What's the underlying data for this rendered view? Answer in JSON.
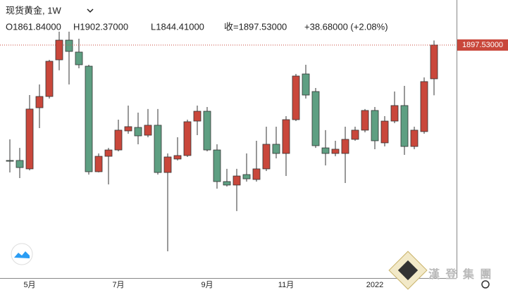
{
  "chart_data": {
    "type": "candlestick",
    "title": "现货黄金, 1W",
    "legend_labels": [
      "O1861.84000",
      "H1902.37000",
      "L1844.41000",
      "收=1897.53000",
      "+38.68000 (+2.08%)"
    ],
    "last_price_label": "1897.53000",
    "watermark": "漢 登 集 團",
    "up_color": "#c9473b",
    "down_color": "#5e9f82",
    "price_line_color": "#c9473b",
    "ylim": [
      1651.4,
      1945.1
    ],
    "categories": [
      null,
      null,
      "5月",
      null,
      null,
      null,
      null,
      null,
      null,
      null,
      null,
      "7月",
      null,
      null,
      null,
      null,
      null,
      null,
      null,
      null,
      "9月",
      null,
      null,
      null,
      null,
      null,
      null,
      null,
      "11月",
      null,
      null,
      null,
      null,
      null,
      null,
      null,
      null,
      "2022",
      null,
      null,
      null,
      null,
      null,
      null
    ],
    "open": [
      1775.6,
      1775.6,
      1766.7,
      1831.3,
      1843.2,
      1881.9,
      1902.7,
      1890.1,
      1875.2,
      1763.7,
      1780.0,
      1786.7,
      1806.8,
      1810.5,
      1802.3,
      1812.8,
      1762.9,
      1777.1,
      1780.8,
      1817.2,
      1827.6,
      1786.7,
      1753.3,
      1749.6,
      1760.7,
      1755.5,
      1766.7,
      1792.7,
      1783.0,
      1818.7,
      1867.0,
      1848.4,
      1788.9,
      1783.0,
      1783.0,
      1797.9,
      1807.6,
      1828.4,
      1794.2,
      1817.2,
      1833.6,
      1790.4,
      1806.1,
      1861.84
    ],
    "high": [
      1797.9,
      1788.9,
      1844.7,
      1855.9,
      1881.9,
      1911.6,
      1911.6,
      1904.2,
      1876.7,
      1783.0,
      1788.9,
      1818.7,
      1833.6,
      1826.1,
      1829.9,
      1829.9,
      1783.0,
      1800.1,
      1818.7,
      1833.6,
      1832.1,
      1792.7,
      1766.7,
      1766.7,
      1783.0,
      1796.4,
      1811.3,
      1811.3,
      1822.4,
      1867.0,
      1876.7,
      1852.2,
      1807.6,
      1796.4,
      1811.3,
      1811.3,
      1829.9,
      1832.1,
      1822.4,
      1848.4,
      1854.4,
      1811.3,
      1863.3,
      1902.37
    ],
    "low": [
      1762.9,
      1757.0,
      1765.2,
      1809.8,
      1841.0,
      1870.8,
      1855.9,
      1873.0,
      1760.7,
      1763.0,
      1750.3,
      1785.2,
      1803.8,
      1792.7,
      1800.1,
      1760.7,
      1679.7,
      1775.6,
      1779.3,
      1802.3,
      1785.2,
      1745.8,
      1748.1,
      1722.1,
      1753.3,
      1753.3,
      1764.4,
      1777.8,
      1759.2,
      1817.2,
      1841.0,
      1788.9,
      1770.4,
      1780.0,
      1751.8,
      1796.4,
      1805.3,
      1787.5,
      1790.4,
      1815.0,
      1781.5,
      1787.5,
      1803.8,
      1844.41
    ],
    "close": [
      1774.8,
      1768.1,
      1829.9,
      1843.2,
      1880.4,
      1902.7,
      1890.8,
      1876.7,
      1763.7,
      1780.0,
      1786.7,
      1807.6,
      1811.3,
      1801.6,
      1812.8,
      1762.9,
      1779.3,
      1780.8,
      1816.5,
      1827.6,
      1786.7,
      1753.3,
      1749.6,
      1759.2,
      1756.2,
      1766.7,
      1792.7,
      1783.0,
      1818.7,
      1864.8,
      1844.7,
      1791.2,
      1783.0,
      1787.5,
      1797.9,
      1807.6,
      1828.4,
      1796.4,
      1817.2,
      1833.6,
      1790.4,
      1807.6,
      1858.9,
      1897.53
    ]
  }
}
